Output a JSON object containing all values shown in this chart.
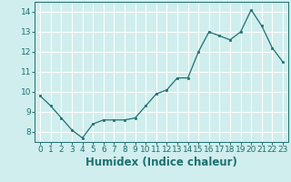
{
  "x": [
    0,
    1,
    2,
    3,
    4,
    5,
    6,
    7,
    8,
    9,
    10,
    11,
    12,
    13,
    14,
    15,
    16,
    17,
    18,
    19,
    20,
    21,
    22,
    23
  ],
  "y": [
    9.8,
    9.3,
    8.7,
    8.1,
    7.7,
    8.4,
    8.6,
    8.6,
    8.6,
    8.7,
    9.3,
    9.9,
    10.1,
    10.7,
    10.7,
    12.0,
    13.0,
    12.8,
    12.6,
    13.0,
    14.1,
    13.3,
    12.2,
    11.5
  ],
  "xlabel": "Humidex (Indice chaleur)",
  "ylabel": "",
  "xlim": [
    -0.5,
    23.5
  ],
  "ylim": [
    7.5,
    14.5
  ],
  "yticks": [
    8,
    9,
    10,
    11,
    12,
    13,
    14
  ],
  "xticks": [
    0,
    1,
    2,
    3,
    4,
    5,
    6,
    7,
    8,
    9,
    10,
    11,
    12,
    13,
    14,
    15,
    16,
    17,
    18,
    19,
    20,
    21,
    22,
    23
  ],
  "line_color": "#1e7070",
  "marker_color": "#1e7070",
  "bg_color": "#d0eeee",
  "grid_color": "#ffffff",
  "tick_label_fontsize": 6.5,
  "xlabel_fontsize": 8.5
}
